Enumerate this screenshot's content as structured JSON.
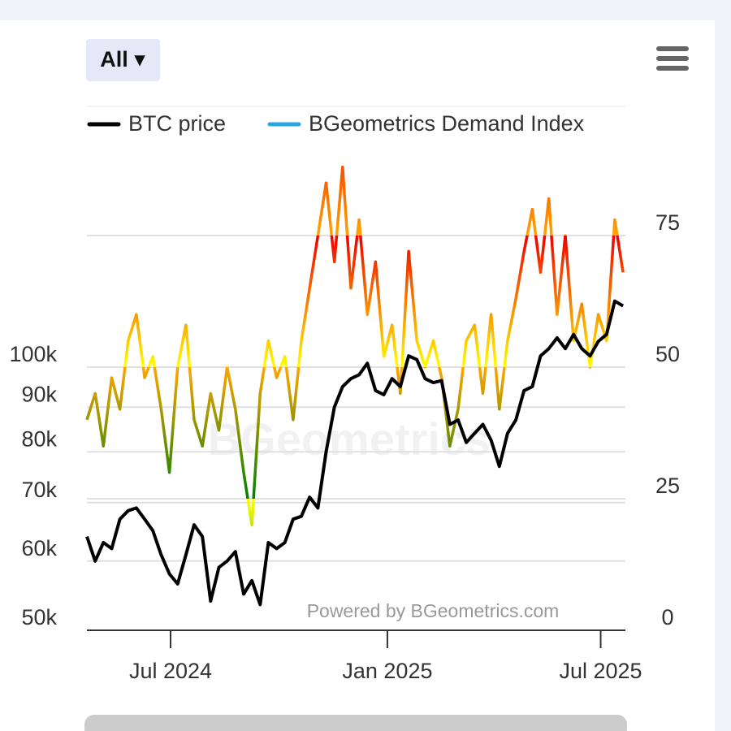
{
  "chart_data": {
    "type": "line",
    "range_selector": "All ▾",
    "credits": "Powered by BGeometrics.com",
    "watermark": "BGeometrics",
    "x": [
      "2024-04-21",
      "2024-04-28",
      "2024-05-05",
      "2024-05-12",
      "2024-05-19",
      "2024-05-26",
      "2024-06-02",
      "2024-06-09",
      "2024-06-16",
      "2024-06-23",
      "2024-06-30",
      "2024-07-07",
      "2024-07-14",
      "2024-07-21",
      "2024-07-28",
      "2024-08-04",
      "2024-08-11",
      "2024-08-18",
      "2024-08-25",
      "2024-09-01",
      "2024-09-08",
      "2024-09-15",
      "2024-09-22",
      "2024-09-29",
      "2024-10-06",
      "2024-10-13",
      "2024-10-20",
      "2024-10-27",
      "2024-11-03",
      "2024-11-10",
      "2024-11-17",
      "2024-11-24",
      "2024-12-01",
      "2024-12-08",
      "2024-12-15",
      "2024-12-22",
      "2024-12-29",
      "2025-01-05",
      "2025-01-12",
      "2025-01-19",
      "2025-01-26",
      "2025-02-02",
      "2025-02-09",
      "2025-02-16",
      "2025-02-23",
      "2025-03-02",
      "2025-03-09",
      "2025-03-16",
      "2025-03-23",
      "2025-03-30",
      "2025-04-06",
      "2025-04-13",
      "2025-04-20",
      "2025-04-27",
      "2025-05-04",
      "2025-05-11",
      "2025-05-18",
      "2025-05-25",
      "2025-06-01",
      "2025-06-08",
      "2025-06-15",
      "2025-06-22",
      "2025-06-29",
      "2025-07-06",
      "2025-07-13",
      "2025-07-20"
    ],
    "xlim": [
      "2024-04-21",
      "2025-07-22"
    ],
    "xticks": [
      {
        "value": "2024-07-01",
        "label": "Jul 2024"
      },
      {
        "value": "2025-01-01",
        "label": "Jan 2025"
      },
      {
        "value": "2025-07-01",
        "label": "Jul 2025"
      }
    ],
    "ylim": [
      50000,
      200000
    ],
    "log_y": true,
    "yticks": [
      {
        "value": 50000,
        "label": "50k"
      },
      {
        "value": 60000,
        "label": "60k"
      },
      {
        "value": 70000,
        "label": "70k"
      },
      {
        "value": 80000,
        "label": "80k"
      },
      {
        "value": 90000,
        "label": "90k"
      },
      {
        "value": 100000,
        "label": "100k"
      }
    ],
    "y2lim": [
      0,
      100
    ],
    "y2ticks": [
      0,
      25,
      50,
      75
    ],
    "grid": true,
    "series": [
      {
        "name": "BTC price",
        "color": "#000000",
        "axis": "y",
        "values": [
          64000,
          60000,
          63000,
          62000,
          67000,
          68500,
          69000,
          67000,
          65000,
          61000,
          58000,
          56500,
          61000,
          66000,
          64000,
          54000,
          59000,
          60000,
          61500,
          55000,
          57000,
          53500,
          63000,
          62000,
          63000,
          67000,
          67500,
          71000,
          69000,
          80000,
          90000,
          95000,
          97000,
          98000,
          101000,
          94000,
          93000,
          97000,
          95000,
          103000,
          102000,
          97000,
          96000,
          96500,
          86000,
          87000,
          82000,
          84000,
          86000,
          82500,
          77000,
          84000,
          87000,
          94000,
          95000,
          103000,
          105000,
          108000,
          105000,
          109000,
          105000,
          103000,
          107000,
          109000,
          119000,
          117500
        ]
      },
      {
        "name": "BGeometrics Demand Index",
        "color": "#29a8e0",
        "axis": "y2",
        "bands": [
          {
            "from": 0,
            "to": 25,
            "color": "#008000"
          },
          {
            "from": 25,
            "to": 50,
            "color": "#ffff00"
          },
          {
            "from": 50,
            "to": 75,
            "color": "#ffa500"
          },
          {
            "from": 75,
            "to": 100,
            "color": "#ee0000"
          }
        ],
        "values": [
          40,
          45,
          35,
          48,
          42,
          55,
          60,
          48,
          52,
          42,
          30,
          50,
          58,
          40,
          35,
          45,
          38,
          50,
          42,
          30,
          20,
          45,
          55,
          48,
          52,
          40,
          55,
          65,
          75,
          85,
          70,
          88,
          65,
          78,
          60,
          70,
          52,
          58,
          45,
          72,
          55,
          50,
          55,
          48,
          35,
          42,
          55,
          58,
          45,
          60,
          42,
          55,
          63,
          72,
          80,
          68,
          82,
          60,
          75,
          55,
          62,
          50,
          60,
          55,
          78,
          68
        ]
      }
    ]
  }
}
